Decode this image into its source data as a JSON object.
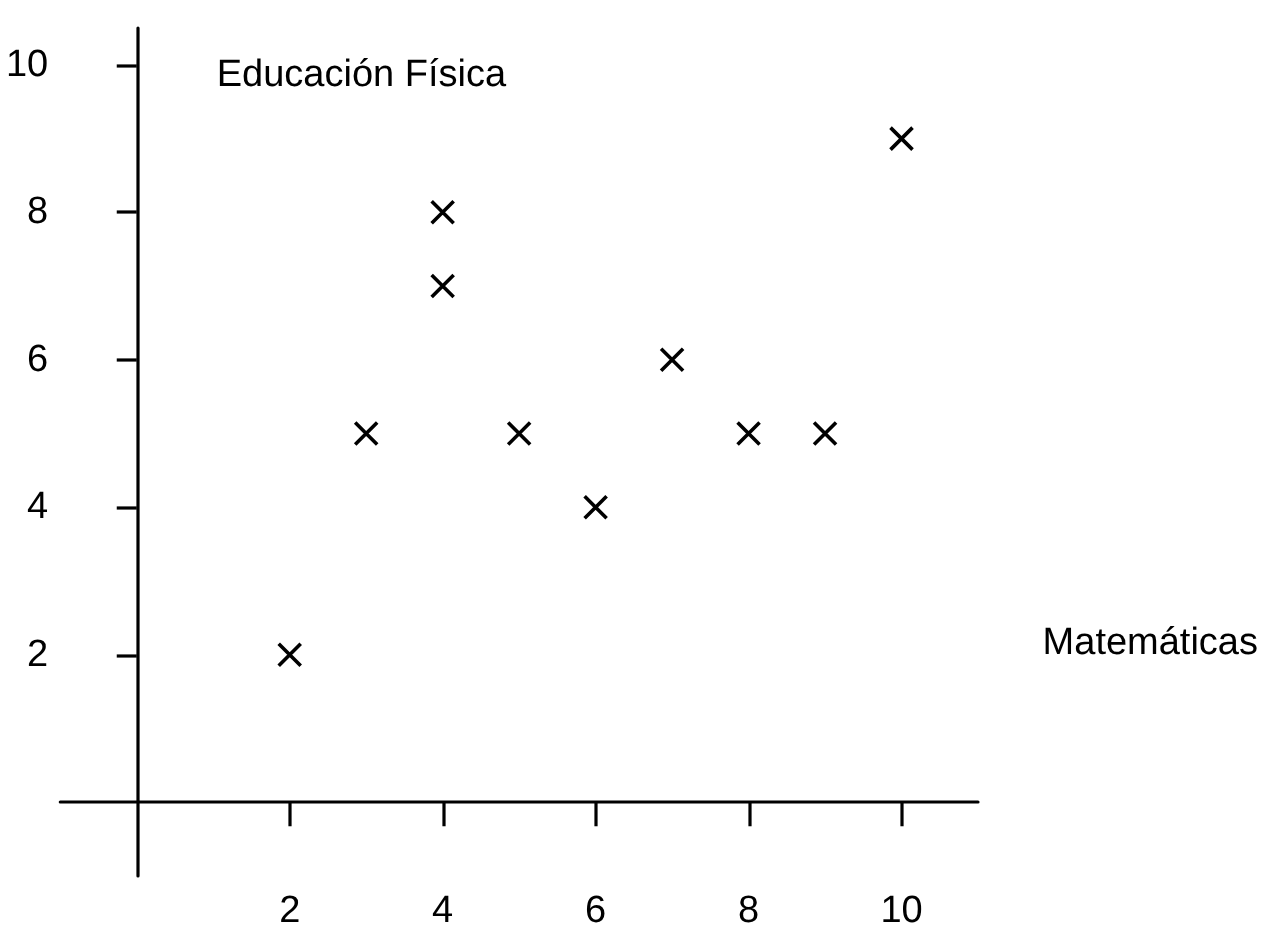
{
  "chart_data": {
    "type": "scatter",
    "xlabel": "Matemáticas",
    "ylabel": "Educación Física",
    "x": [
      2,
      3,
      4,
      4,
      5,
      6,
      7,
      8,
      9,
      10
    ],
    "values": [
      2,
      5,
      8,
      7,
      5,
      4,
      6,
      5,
      5,
      9
    ],
    "color": "#000000",
    "marker": "cross",
    "xlim": [
      -1,
      11
    ],
    "ylim": [
      -1,
      10.5
    ],
    "xticks": [
      2,
      4,
      6,
      8,
      10
    ],
    "yticks": [
      2,
      4,
      6,
      8,
      10
    ],
    "grid": false
  }
}
